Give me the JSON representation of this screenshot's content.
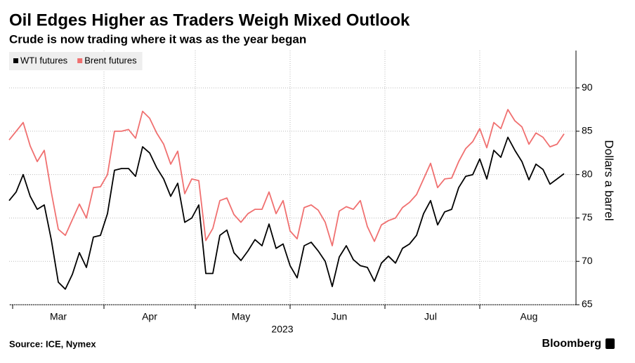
{
  "chart_data": {
    "type": "line",
    "title": "Oil Edges Higher as Traders Weigh Mixed Outlook",
    "subtitle": "Crude is now trading where it was as the year began",
    "ylabel": "Dollars a barrel",
    "xlabel": "2023",
    "source": "Source: ICE, Nymex",
    "brand": "Bloomberg",
    "categories": [
      null,
      null,
      null,
      null,
      null,
      null,
      null,
      "Mar",
      null,
      null,
      null,
      null,
      null,
      null,
      null,
      null,
      null,
      null,
      null,
      null,
      "Apr",
      null,
      null,
      null,
      null,
      null,
      null,
      null,
      null,
      null,
      null,
      null,
      null,
      "May",
      null,
      null,
      null,
      null,
      null,
      null,
      null,
      null,
      null,
      null,
      null,
      null,
      null,
      "Jun",
      null,
      null,
      null,
      null,
      null,
      null,
      null,
      null,
      null,
      null,
      null,
      null,
      "Jul",
      null,
      null,
      null,
      null,
      null,
      null,
      null,
      null,
      null,
      null,
      null,
      null,
      null,
      "Aug",
      null,
      null,
      null,
      null,
      null
    ],
    "series": [
      {
        "name": "WTI futures",
        "color": "#000000",
        "values": [
          77.0,
          78.0,
          80.0,
          77.5,
          76.0,
          76.5,
          72.5,
          67.6,
          66.8,
          68.5,
          71.0,
          69.3,
          72.8,
          73.0,
          75.5,
          80.5,
          80.7,
          80.7,
          79.8,
          83.2,
          82.5,
          80.8,
          79.5,
          77.5,
          79.0,
          74.5,
          75.0,
          76.5,
          68.6,
          68.6,
          73.0,
          73.6,
          71.0,
          70.1,
          71.2,
          72.5,
          71.8,
          74.3,
          71.5,
          72.0,
          69.5,
          68.1,
          71.8,
          72.2,
          71.2,
          70.0,
          67.1,
          70.5,
          71.8,
          70.2,
          69.5,
          69.3,
          67.7,
          69.8,
          70.6,
          69.8,
          71.5,
          72.0,
          73.0,
          75.5,
          77.0,
          74.2,
          75.7,
          76.0,
          78.5,
          79.8,
          80.0,
          81.8,
          79.5,
          82.8,
          82.0,
          84.3,
          82.8,
          81.5,
          79.4,
          81.2,
          80.6,
          78.9,
          79.5,
          80.1
        ]
      },
      {
        "name": "Brent futures",
        "color": "#f07070",
        "values": [
          84.0,
          85.0,
          86.0,
          83.3,
          81.5,
          82.8,
          78.0,
          73.7,
          73.0,
          74.8,
          76.6,
          75.0,
          78.5,
          78.6,
          80.0,
          85.0,
          85.0,
          85.2,
          84.2,
          87.3,
          86.5,
          84.8,
          83.5,
          81.2,
          82.7,
          77.8,
          79.5,
          79.3,
          72.4,
          73.8,
          77.0,
          77.3,
          75.4,
          74.5,
          75.5,
          76.0,
          76.0,
          78.0,
          75.5,
          77.0,
          73.5,
          72.6,
          76.2,
          76.5,
          75.9,
          74.5,
          71.8,
          75.8,
          76.3,
          76.0,
          77.0,
          74.0,
          72.3,
          74.2,
          74.7,
          75.0,
          76.2,
          76.8,
          77.7,
          79.5,
          81.3,
          78.5,
          79.5,
          79.6,
          81.5,
          83.0,
          83.8,
          85.3,
          83.1,
          86.0,
          85.3,
          87.5,
          86.2,
          85.5,
          83.5,
          84.8,
          84.3,
          83.2,
          83.5,
          84.7
        ]
      }
    ],
    "ylim": [
      65,
      94.3
    ],
    "yticks": [
      65,
      70,
      75,
      80,
      85,
      90
    ],
    "grid": true,
    "legend": "top-left"
  }
}
